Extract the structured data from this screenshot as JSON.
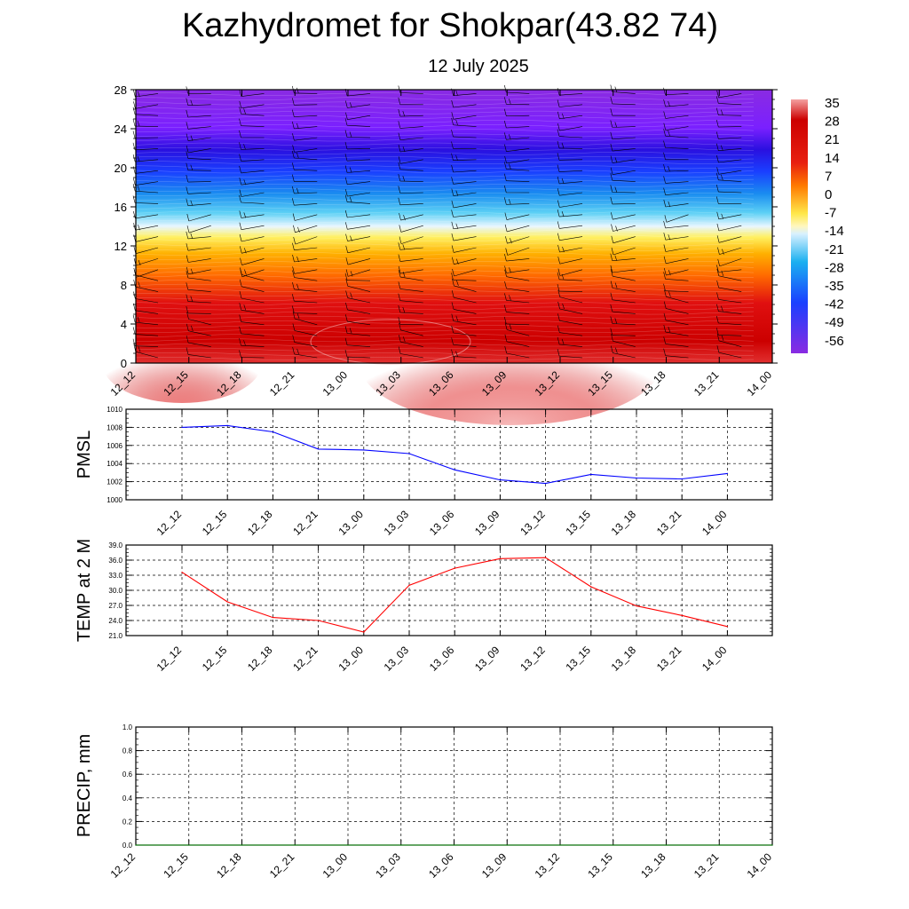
{
  "title": "Kazhydromet for Shokpar(43.82 74)",
  "subtitle": "12 July 2025",
  "chart_data": [
    {
      "type": "heatmap",
      "description_of_content": "filled contour of temperature vs height with wind barbs",
      "x_tick_labels": [
        "12_12",
        "12_15",
        "12_18",
        "12_21",
        "13_00",
        "13_03",
        "13_06",
        "13_09",
        "13_12",
        "13_15",
        "13_18",
        "13_21",
        "14_00"
      ],
      "y_tick_labels": [
        "0",
        "4",
        "8",
        "12",
        "16",
        "20",
        "24",
        "28"
      ],
      "ylim": [
        0,
        28
      ],
      "colorbar_labels": [
        "35",
        "28",
        "21",
        "14",
        "7",
        "0",
        "-7",
        "-14",
        "-21",
        "-28",
        "-35",
        "-42",
        "-49",
        "-56"
      ],
      "colors": {
        "hot": "#f4a0a0",
        "red": "#cc0000",
        "orange": "#ff7a00",
        "yellow": "#ffe84a",
        "pale": "#d8f0ff",
        "cyan": "#1ab0f0",
        "blue": "#1a40ff",
        "violet": "#8a2be2"
      }
    },
    {
      "type": "line",
      "ylabel": "PMSL",
      "x_tick_labels": [
        "12_12",
        "12_15",
        "12_18",
        "12_21",
        "13_00",
        "13_03",
        "13_06",
        "13_09",
        "13_12",
        "13_15",
        "13_18",
        "13_21",
        "14_00"
      ],
      "y_tick_labels": [
        "1000",
        "1002",
        "1004",
        "1006",
        "1008",
        "1010"
      ],
      "ylim": [
        1000,
        1010
      ],
      "series": [
        {
          "color": "#0000ff",
          "values": [
            1008.0,
            1008.2,
            1007.5,
            1005.6,
            1005.5,
            1005.1,
            1003.3,
            1002.2,
            1001.8,
            1002.8,
            1002.4,
            1002.3,
            1002.9
          ]
        }
      ],
      "grid": true
    },
    {
      "type": "line",
      "ylabel": "TEMP at 2 M",
      "x_tick_labels": [
        "12_12",
        "12_15",
        "12_18",
        "12_21",
        "13_00",
        "13_03",
        "13_06",
        "13_09",
        "13_12",
        "13_15",
        "13_18",
        "13_21",
        "14_00"
      ],
      "y_tick_labels": [
        "21.0",
        "24.0",
        "27.0",
        "30.0",
        "33.0",
        "36.0",
        "39.0"
      ],
      "ylim": [
        21,
        39
      ],
      "series": [
        {
          "color": "#ff0000",
          "values": [
            33.6,
            27.7,
            24.6,
            24.0,
            21.7,
            31.0,
            34.4,
            36.3,
            36.5,
            30.7,
            26.9,
            25.0,
            22.8
          ]
        }
      ],
      "grid": true
    },
    {
      "type": "line",
      "ylabel": "PRECIP, mm",
      "x_tick_labels": [
        "12_12",
        "12_15",
        "12_18",
        "12_21",
        "13_00",
        "13_03",
        "13_06",
        "13_09",
        "13_12",
        "13_15",
        "13_18",
        "13_21",
        "14_00"
      ],
      "y_tick_labels": [
        "0.0",
        "0.2",
        "0.4",
        "0.6",
        "0.8",
        "1.0"
      ],
      "ylim": [
        0,
        1
      ],
      "series": [
        {
          "color": "#008000",
          "values": [
            0,
            0,
            0,
            0,
            0,
            0,
            0,
            0,
            0,
            0,
            0,
            0,
            0
          ]
        }
      ],
      "grid": true
    }
  ]
}
